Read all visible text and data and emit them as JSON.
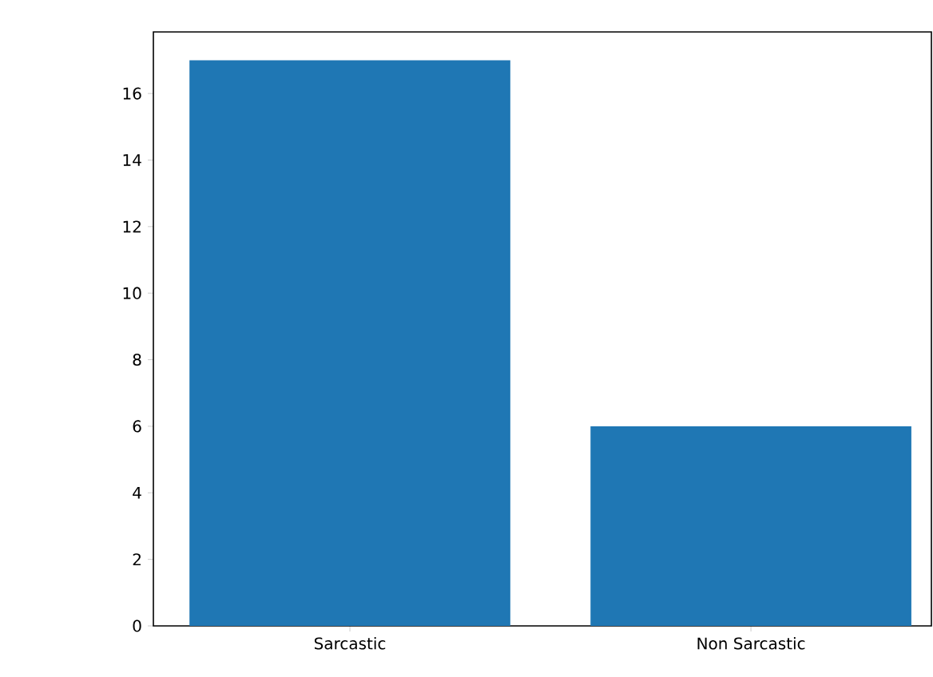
{
  "chart_data": {
    "type": "bar",
    "categories": [
      "Sarcastic",
      "Non Sarcastic"
    ],
    "values": [
      17,
      6
    ],
    "color": "#1f77b4",
    "ylim": [
      0,
      17.85
    ],
    "yticks": [
      0,
      2,
      4,
      6,
      8,
      10,
      12,
      14,
      16
    ],
    "grid": false
  }
}
